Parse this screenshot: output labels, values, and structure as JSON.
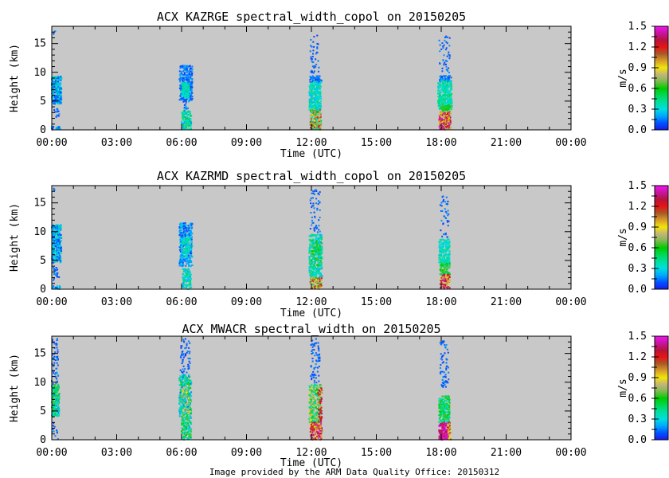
{
  "figure": {
    "background": "#ffffff",
    "plot_background": "#c8c8c8",
    "frame_color": "#000000",
    "text_color": "#000000",
    "annotation": {
      "text": "Image provided by the ARM Data Quality Office: 20150312",
      "color": "#00d9d9"
    }
  },
  "axes": {
    "x_label": "Time (UTC)",
    "y_label": "Height (km)",
    "x_tick_labels": [
      "00:00",
      "03:00",
      "06:00",
      "09:00",
      "12:00",
      "15:00",
      "18:00",
      "21:00",
      "00:00"
    ],
    "x_range_hours": [
      0,
      24
    ],
    "x_major_step_hours": 3,
    "x_minor_step_hours": 1,
    "y_range_km": [
      0,
      18
    ],
    "y_major_tick_labels": [
      "0",
      "5",
      "10",
      "15"
    ],
    "y_major_ticks_km": [
      0,
      5,
      10,
      15
    ],
    "y_minor_step_km": 1
  },
  "colorbar": {
    "label": "m/s",
    "range": [
      0.0,
      1.5
    ],
    "tick_values": [
      0.0,
      0.3,
      0.6,
      0.9,
      1.2,
      1.5
    ],
    "tick_labels": [
      "0.0",
      "0.3",
      "0.6",
      "0.9",
      "1.2",
      "1.5"
    ],
    "minor_tick_step": 0.15,
    "stops": [
      {
        "v": 0.0,
        "c": "#1a1af0"
      },
      {
        "v": 0.1,
        "c": "#0055ff"
      },
      {
        "v": 0.2,
        "c": "#00a6ff"
      },
      {
        "v": 0.3,
        "c": "#00dede"
      },
      {
        "v": 0.4,
        "c": "#00dfa0"
      },
      {
        "v": 0.5,
        "c": "#00d855"
      },
      {
        "v": 0.6,
        "c": "#00cc00"
      },
      {
        "v": 0.7,
        "c": "#7cba50"
      },
      {
        "v": 0.8,
        "c": "#c4b478"
      },
      {
        "v": 0.9,
        "c": "#f0e60a"
      },
      {
        "v": 1.0,
        "c": "#d89c28"
      },
      {
        "v": 1.1,
        "c": "#a85a28"
      },
      {
        "v": 1.2,
        "c": "#e81414"
      },
      {
        "v": 1.3,
        "c": "#b4143c"
      },
      {
        "v": 1.4,
        "c": "#c814a0"
      },
      {
        "v": 1.5,
        "c": "#f014f0"
      }
    ]
  },
  "chart_data": [
    {
      "type": "scatter",
      "title": "ACX KAZRGE spectral_width_copol on 20150205",
      "xlabel": "Time (UTC)",
      "ylabel": "Height (km)",
      "xlim_hours": [
        0,
        24
      ],
      "ylim_km": [
        0,
        18
      ],
      "value_units": "m/s",
      "value_range": [
        0.0,
        1.5
      ],
      "grid": false,
      "clusters": [
        {
          "t": [
            0.0,
            0.45
          ],
          "h": [
            4.5,
            9.3
          ],
          "v": [
            0.05,
            0.42
          ],
          "n": 280
        },
        {
          "t": [
            0.0,
            0.4
          ],
          "h": [
            0.0,
            0.6
          ],
          "v": [
            0.05,
            0.3
          ],
          "n": 25
        },
        {
          "t": [
            0.1,
            0.35
          ],
          "h": [
            2.2,
            3.9
          ],
          "v": [
            0.05,
            0.2
          ],
          "n": 14
        },
        {
          "t": [
            0.05,
            0.2
          ],
          "h": [
            16.6,
            17.5
          ],
          "v": [
            0.08,
            0.18
          ],
          "n": 4
        },
        {
          "t": [
            5.9,
            6.5
          ],
          "h": [
            4.8,
            11.2
          ],
          "v": [
            0.05,
            0.22
          ],
          "n": 300
        },
        {
          "t": [
            6.0,
            6.35
          ],
          "h": [
            5.5,
            8.2
          ],
          "v": [
            0.25,
            0.45
          ],
          "n": 110
        },
        {
          "t": [
            6.0,
            6.45
          ],
          "h": [
            0.0,
            3.3
          ],
          "v": [
            0.18,
            0.55
          ],
          "n": 130
        },
        {
          "t": [
            6.1,
            6.3
          ],
          "h": [
            3.3,
            4.6
          ],
          "v": [
            0.05,
            0.25
          ],
          "n": 12
        },
        {
          "t": [
            11.95,
            12.35
          ],
          "h": [
            9.4,
            16.8
          ],
          "v": [
            0.05,
            0.18
          ],
          "n": 40
        },
        {
          "t": [
            11.9,
            12.5
          ],
          "h": [
            8.2,
            9.4
          ],
          "v": [
            0.05,
            0.2
          ],
          "n": 55
        },
        {
          "t": [
            11.9,
            12.45
          ],
          "h": [
            3.5,
            8.4
          ],
          "v": [
            0.22,
            0.45
          ],
          "n": 300
        },
        {
          "t": [
            11.95,
            12.45
          ],
          "h": [
            0.0,
            3.5
          ],
          "v": [
            0.3,
            1.25
          ],
          "n": 200
        },
        {
          "t": [
            17.9,
            18.4
          ],
          "h": [
            9.6,
            16.6
          ],
          "v": [
            0.05,
            0.18
          ],
          "n": 45
        },
        {
          "t": [
            17.9,
            18.5
          ],
          "h": [
            8.3,
            9.5
          ],
          "v": [
            0.05,
            0.2
          ],
          "n": 55
        },
        {
          "t": [
            17.85,
            18.5
          ],
          "h": [
            3.5,
            8.5
          ],
          "v": [
            0.25,
            0.5
          ],
          "n": 330
        },
        {
          "t": [
            18.0,
            18.45
          ],
          "h": [
            3.2,
            4.3
          ],
          "v": [
            0.5,
            0.68
          ],
          "n": 45
        },
        {
          "t": [
            17.9,
            18.45
          ],
          "h": [
            0.0,
            3.1
          ],
          "v": [
            0.75,
            1.5
          ],
          "n": 200
        }
      ]
    },
    {
      "type": "scatter",
      "title": "ACX KAZRMD spectral_width_copol on 20150205",
      "xlabel": "Time (UTC)",
      "ylabel": "Height (km)",
      "xlim_hours": [
        0,
        24
      ],
      "ylim_km": [
        0,
        18
      ],
      "value_units": "m/s",
      "value_range": [
        0.0,
        1.5
      ],
      "grid": false,
      "clusters": [
        {
          "t": [
            0.0,
            0.45
          ],
          "h": [
            4.5,
            11.2
          ],
          "v": [
            0.05,
            0.4
          ],
          "n": 330
        },
        {
          "t": [
            0.0,
            0.4
          ],
          "h": [
            0.0,
            0.6
          ],
          "v": [
            0.05,
            0.3
          ],
          "n": 20
        },
        {
          "t": [
            0.05,
            0.35
          ],
          "h": [
            1.5,
            4.0
          ],
          "v": [
            0.05,
            0.22
          ],
          "n": 25
        },
        {
          "t": [
            0.05,
            0.2
          ],
          "h": [
            17.0,
            17.8
          ],
          "v": [
            0.08,
            0.18
          ],
          "n": 4
        },
        {
          "t": [
            5.9,
            6.5
          ],
          "h": [
            4.0,
            11.5
          ],
          "v": [
            0.05,
            0.3
          ],
          "n": 360
        },
        {
          "t": [
            6.0,
            6.4
          ],
          "h": [
            5.5,
            9.0
          ],
          "v": [
            0.25,
            0.45
          ],
          "n": 90
        },
        {
          "t": [
            6.05,
            6.45
          ],
          "h": [
            0.0,
            3.6
          ],
          "v": [
            0.2,
            0.5
          ],
          "n": 120
        },
        {
          "t": [
            11.95,
            12.4
          ],
          "h": [
            9.6,
            17.6
          ],
          "v": [
            0.05,
            0.18
          ],
          "n": 55
        },
        {
          "t": [
            11.9,
            12.5
          ],
          "h": [
            2.0,
            9.6
          ],
          "v": [
            0.2,
            0.5
          ],
          "n": 360
        },
        {
          "t": [
            12.0,
            12.45
          ],
          "h": [
            4.0,
            8.5
          ],
          "v": [
            0.5,
            0.68
          ],
          "n": 60
        },
        {
          "t": [
            11.95,
            12.5
          ],
          "h": [
            0.0,
            2.0
          ],
          "v": [
            0.55,
            1.3
          ],
          "n": 90
        },
        {
          "t": [
            17.95,
            18.35
          ],
          "h": [
            8.6,
            16.2
          ],
          "v": [
            0.05,
            0.18
          ],
          "n": 40
        },
        {
          "t": [
            17.9,
            18.4
          ],
          "h": [
            4.5,
            8.7
          ],
          "v": [
            0.25,
            0.45
          ],
          "n": 200
        },
        {
          "t": [
            17.95,
            18.4
          ],
          "h": [
            2.5,
            4.5
          ],
          "v": [
            0.45,
            0.7
          ],
          "n": 80
        },
        {
          "t": [
            17.95,
            18.4
          ],
          "h": [
            0.0,
            2.6
          ],
          "v": [
            0.8,
            1.5
          ],
          "n": 120
        }
      ]
    },
    {
      "type": "scatter",
      "title": "ACX MWACR spectral_width on 20150205",
      "xlabel": "Time (UTC)",
      "ylabel": "Height (km)",
      "xlim_hours": [
        0,
        24
      ],
      "ylim_km": [
        0,
        18
      ],
      "value_units": "m/s",
      "value_range": [
        0.0,
        1.5
      ],
      "grid": false,
      "clusters": [
        {
          "t": [
            0.0,
            0.3
          ],
          "h": [
            0.0,
            17.6
          ],
          "v": [
            0.05,
            0.2
          ],
          "n": 90
        },
        {
          "t": [
            0.0,
            0.35
          ],
          "h": [
            4.0,
            9.6
          ],
          "v": [
            0.2,
            0.7
          ],
          "n": 200
        },
        {
          "t": [
            5.95,
            6.4
          ],
          "h": [
            11.5,
            17.6
          ],
          "v": [
            0.05,
            0.18
          ],
          "n": 55
        },
        {
          "t": [
            5.9,
            6.45
          ],
          "h": [
            4.0,
            11.3
          ],
          "v": [
            0.1,
            0.6
          ],
          "n": 300
        },
        {
          "t": [
            6.0,
            6.4
          ],
          "h": [
            4.5,
            9.5
          ],
          "v": [
            0.7,
            1.0
          ],
          "n": 40
        },
        {
          "t": [
            6.0,
            6.45
          ],
          "h": [
            0.0,
            4.0
          ],
          "v": [
            0.2,
            0.7
          ],
          "n": 150
        },
        {
          "t": [
            11.95,
            12.4
          ],
          "h": [
            9.8,
            17.6
          ],
          "v": [
            0.05,
            0.18
          ],
          "n": 65
        },
        {
          "t": [
            11.9,
            12.45
          ],
          "h": [
            3.0,
            9.6
          ],
          "v": [
            0.3,
            1.0
          ],
          "n": 300
        },
        {
          "t": [
            12.3,
            12.5
          ],
          "h": [
            3.0,
            9.0
          ],
          "v": [
            1.0,
            1.35
          ],
          "n": 55
        },
        {
          "t": [
            11.95,
            12.5
          ],
          "h": [
            0.0,
            3.0
          ],
          "v": [
            0.8,
            1.5
          ],
          "n": 150
        },
        {
          "t": [
            17.95,
            18.35
          ],
          "h": [
            9.0,
            17.2
          ],
          "v": [
            0.05,
            0.18
          ],
          "n": 65
        },
        {
          "t": [
            17.9,
            18.4
          ],
          "h": [
            3.0,
            7.6
          ],
          "v": [
            0.3,
            0.7
          ],
          "n": 220
        },
        {
          "t": [
            17.9,
            18.35
          ],
          "h": [
            0.0,
            3.0
          ],
          "v": [
            1.25,
            1.5
          ],
          "n": 160
        },
        {
          "t": [
            18.3,
            18.45
          ],
          "h": [
            0.0,
            3.0
          ],
          "v": [
            0.8,
            1.2
          ],
          "n": 30
        }
      ]
    }
  ]
}
